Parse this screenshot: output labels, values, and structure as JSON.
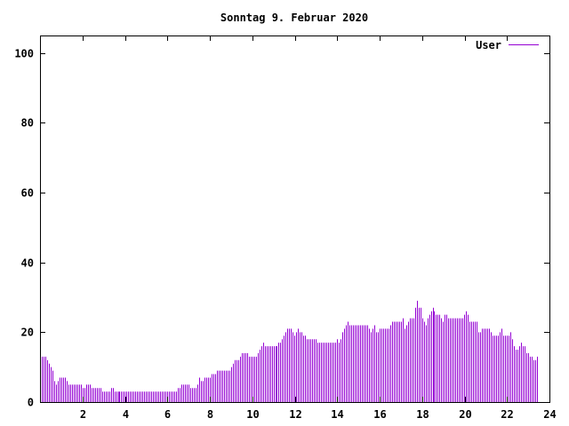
{
  "chart_data": {
    "type": "bar",
    "title": "Sonntag 9. Februar 2020",
    "xlabel": "",
    "ylabel": "",
    "xlim": [
      0,
      24
    ],
    "ylim": [
      0,
      105
    ],
    "x_ticks": [
      2,
      4,
      6,
      8,
      10,
      12,
      14,
      16,
      18,
      20,
      22,
      24
    ],
    "y_ticks": [
      0,
      20,
      40,
      60,
      80,
      100
    ],
    "grid": false,
    "legend_position": "top-right",
    "bar_step_hours": 0.0833,
    "series": [
      {
        "name": "User",
        "color": "#9400d3",
        "start_hour": 0,
        "values": [
          13,
          13,
          13,
          13,
          12,
          11,
          10,
          9,
          6,
          5,
          6,
          7,
          7,
          7,
          7,
          6,
          5,
          5,
          5,
          5,
          5,
          5,
          5,
          5,
          4,
          4,
          5,
          5,
          5,
          4,
          4,
          4,
          4,
          4,
          4,
          3,
          3,
          3,
          3,
          3,
          4,
          4,
          3,
          3,
          3,
          3,
          3,
          3,
          3,
          3,
          3,
          3,
          3,
          3,
          3,
          3,
          3,
          3,
          3,
          3,
          3,
          3,
          3,
          3,
          3,
          3,
          3,
          3,
          3,
          3,
          3,
          3,
          3,
          3,
          3,
          3,
          3,
          3,
          4,
          4,
          5,
          5,
          5,
          5,
          5,
          4,
          4,
          4,
          4,
          5,
          7,
          6,
          6,
          7,
          7,
          7,
          7,
          8,
          8,
          8,
          9,
          9,
          9,
          9,
          9,
          9,
          9,
          9,
          10,
          11,
          12,
          12,
          12,
          13,
          14,
          14,
          14,
          14,
          13,
          13,
          13,
          13,
          13,
          14,
          15,
          16,
          17,
          16,
          16,
          16,
          16,
          16,
          16,
          16,
          16,
          17,
          17,
          18,
          19,
          20,
          21,
          21,
          21,
          20,
          19,
          20,
          21,
          20,
          20,
          19,
          19,
          18,
          18,
          18,
          18,
          18,
          18,
          17,
          17,
          17,
          17,
          17,
          17,
          17,
          17,
          17,
          17,
          17,
          18,
          17,
          18,
          20,
          21,
          22,
          23,
          22,
          22,
          22,
          22,
          22,
          22,
          22,
          22,
          22,
          22,
          22,
          21,
          20,
          21,
          22,
          20,
          20,
          21,
          21,
          21,
          21,
          21,
          21,
          22,
          23,
          23,
          23,
          23,
          23,
          23,
          24,
          21,
          22,
          23,
          24,
          24,
          24,
          27,
          29,
          27,
          27,
          24,
          23,
          22,
          24,
          25,
          26,
          27,
          26,
          25,
          25,
          25,
          24,
          23,
          25,
          25,
          24,
          24,
          24,
          24,
          24,
          24,
          24,
          24,
          24,
          25,
          26,
          25,
          23,
          23,
          23,
          23,
          23,
          20,
          20,
          21,
          21,
          21,
          21,
          21,
          20,
          19,
          19,
          19,
          19,
          20,
          21,
          19,
          19,
          19,
          19,
          20,
          18,
          16,
          15,
          15,
          16,
          17,
          16,
          16,
          14,
          14,
          13,
          13,
          12,
          12,
          13
        ]
      }
    ]
  }
}
